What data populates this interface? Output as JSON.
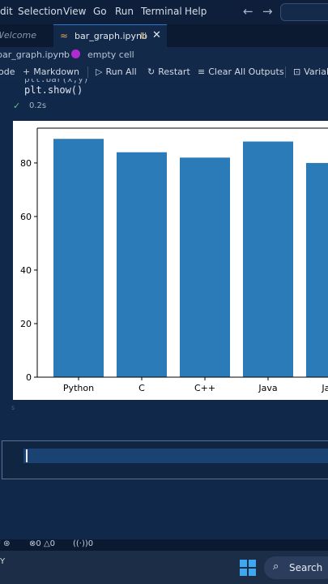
{
  "menubar": {
    "items": [
      "dit",
      "Selection",
      "View",
      "Go",
      "Run",
      "Terminal",
      "Help"
    ],
    "back_arrow": "←",
    "forward_arrow": "→"
  },
  "tabs": {
    "welcome": "Welcome",
    "active": {
      "label": "bar_graph.ipynb",
      "modified": "U",
      "close": "✕",
      "icon": "notebook-icon"
    }
  },
  "breadcrumb": {
    "file": "bar_graph.ipynb",
    "separator": "›",
    "cell": "empty cell"
  },
  "toolbar": {
    "code": "ode",
    "markdown": "Markdown",
    "run_all": "Run All",
    "restart": "Restart",
    "clear_all_outputs": "Clear All Outputs",
    "variables": "Variab"
  },
  "cell": {
    "code_partial": "plt.bar(x,y)",
    "code": "plt.show()",
    "exec_time": "0.2s",
    "check": "✓"
  },
  "chart_data": {
    "type": "bar",
    "categories": [
      "Python",
      "C",
      "C++",
      "Java",
      "Java"
    ],
    "values": [
      89,
      84,
      82,
      88,
      80
    ],
    "ylim": [
      0,
      93
    ],
    "yticks": [
      0,
      20,
      40,
      60,
      80
    ],
    "bar_color": "#2b7bb9",
    "grid": false,
    "title": "",
    "xlabel": "",
    "ylabel": ""
  },
  "statusbar": {
    "errors": "0",
    "warnings": "0",
    "ports": "0"
  },
  "taskbar": {
    "left_text": "Y",
    "search_label": "Search"
  },
  "colors": {
    "editor_bg": "#10284a",
    "accent": "#2f75c9"
  }
}
